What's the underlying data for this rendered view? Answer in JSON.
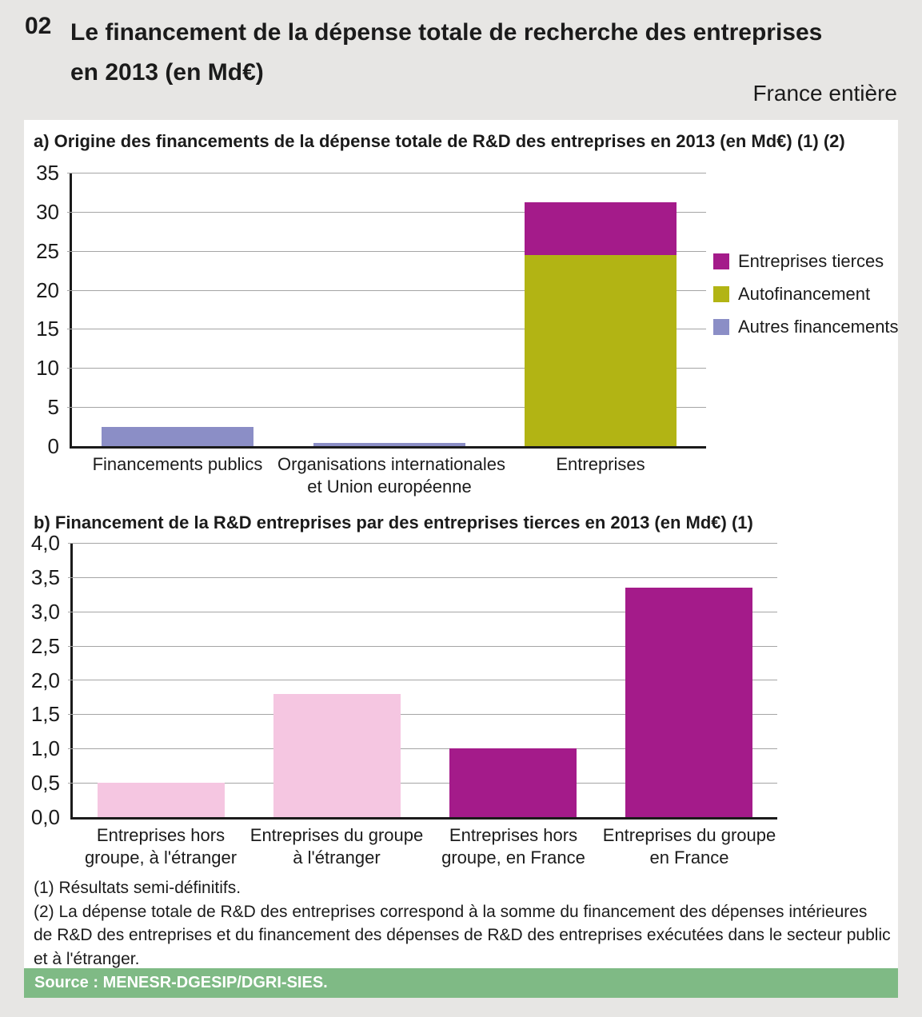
{
  "header": {
    "number": "02",
    "title_line1": "Le financement de la dépense totale de recherche des entreprises",
    "title_line2": "en 2013 (en Md€)",
    "region": "France entière"
  },
  "chart_data": [
    {
      "id": "a",
      "type": "bar",
      "stacked": true,
      "title": "a) Origine des financements de la dépense totale de R&D des entreprises en 2013 (en Md€) (1) (2)",
      "ylim": [
        0,
        35
      ],
      "ytick_step": 5,
      "yticks": [
        "0",
        "5",
        "10",
        "15",
        "20",
        "25",
        "30",
        "35"
      ],
      "grid": true,
      "legend_position": "right",
      "colors": {
        "Entreprises tierces": "#a41b8a",
        "Autofinancement": "#b2b414",
        "Autres financements": "#8b8ec6"
      },
      "legend": [
        {
          "label": "Entreprises tierces",
          "color": "#a41b8a"
        },
        {
          "label": "Autofinancement",
          "color": "#b2b414"
        },
        {
          "label": "Autres financements",
          "color": "#8b8ec6"
        }
      ],
      "bars": [
        {
          "label_lines": [
            "Financements publics"
          ],
          "segments": [
            {
              "series": "Autres financements",
              "value": 2.5
            }
          ]
        },
        {
          "label_lines": [
            "Organisations internationales",
            "et Union européenne"
          ],
          "segments": [
            {
              "series": "Autres financements",
              "value": 0.4
            }
          ]
        },
        {
          "label_lines": [
            "Entreprises"
          ],
          "segments": [
            {
              "series": "Autofinancement",
              "value": 24.5
            },
            {
              "series": "Entreprises tierces",
              "value": 6.7
            }
          ]
        }
      ]
    },
    {
      "id": "b",
      "type": "bar",
      "stacked": false,
      "title": "b) Financement de la R&D entreprises par des entreprises tierces en 2013 (en Md€) (1)",
      "ylim": [
        0,
        4
      ],
      "ytick_step": 0.5,
      "yticks": [
        "0,0",
        "0,5",
        "1,0",
        "1,5",
        "2,0",
        "2,5",
        "3,0",
        "3,5",
        "4,0"
      ],
      "grid": true,
      "colors": {
        "hors France": "#f5c6e1",
        "en France": "#a41b8a"
      },
      "bars": [
        {
          "label_lines": [
            "Entreprises hors",
            "groupe, à l'étranger"
          ],
          "segments": [
            {
              "series": "hors France",
              "value": 0.5,
              "color": "#f5c6e1"
            }
          ]
        },
        {
          "label_lines": [
            "Entreprises du groupe",
            "à l'étranger"
          ],
          "segments": [
            {
              "series": "hors France",
              "value": 1.8,
              "color": "#f5c6e1"
            }
          ]
        },
        {
          "label_lines": [
            "Entreprises hors",
            "groupe, en France"
          ],
          "segments": [
            {
              "series": "en France",
              "value": 1.0,
              "color": "#a41b8a"
            }
          ]
        },
        {
          "label_lines": [
            "Entreprises du groupe",
            "en France"
          ],
          "segments": [
            {
              "series": "en France",
              "value": 3.35,
              "color": "#a41b8a"
            }
          ]
        }
      ]
    }
  ],
  "footnotes": [
    "(1) Résultats semi-définitifs.",
    "(2) La dépense totale de R&D des entreprises correspond à la somme du financement des dépenses intérieures",
    "de R&D des entreprises et du financement des dépenses de R&D des entreprises exécutées dans le secteur public",
    " et à l'étranger."
  ],
  "source": "Source : MENESR-DGESIP/DGRI-SIES."
}
